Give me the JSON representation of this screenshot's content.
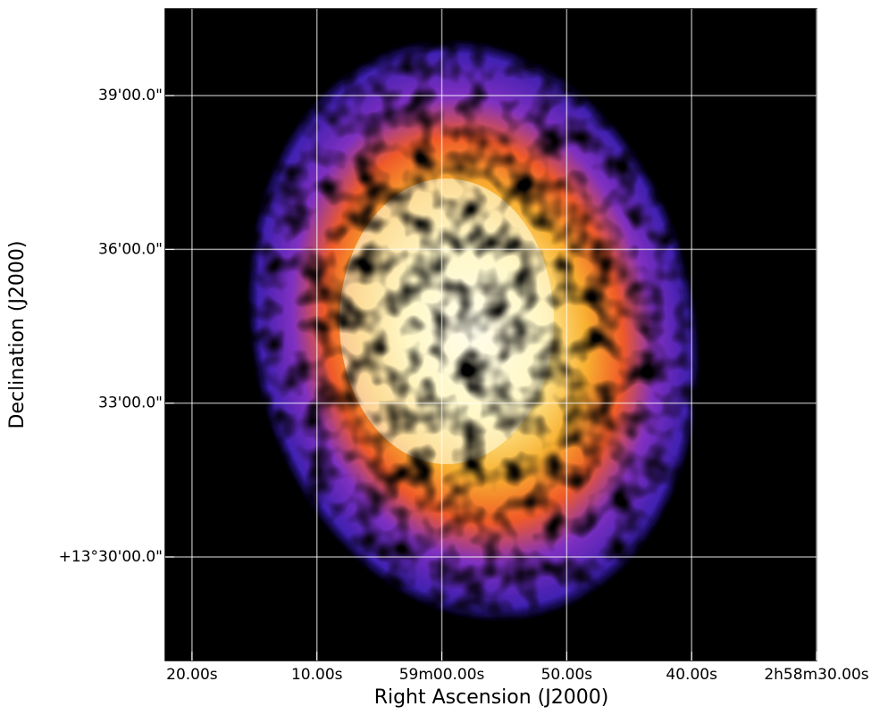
{
  "chart_data": {
    "type": "image",
    "xlabel": "Right Ascension (J2000)",
    "ylabel": "Declination (J2000)",
    "xlim": [
      82.14,
      30
    ],
    "ylim": [
      27.98,
      40.69
    ],
    "xticks": [
      {
        "value": 80,
        "label": "20.00s"
      },
      {
        "value": 70,
        "label": "10.00s"
      },
      {
        "value": 60,
        "label": "59m00.00s"
      },
      {
        "value": 50,
        "label": "50.00s"
      },
      {
        "value": 40,
        "label": "40.00s"
      },
      {
        "value": 30,
        "label": "2h58m30.00s"
      }
    ],
    "yticks": [
      {
        "value": 39,
        "label": "39'00.0\""
      },
      {
        "value": 36,
        "label": "36'00.0\""
      },
      {
        "value": 33,
        "label": "33'00.0\""
      },
      {
        "value": 30,
        "label": "+13°30'00.0\""
      }
    ],
    "grid": true
  }
}
